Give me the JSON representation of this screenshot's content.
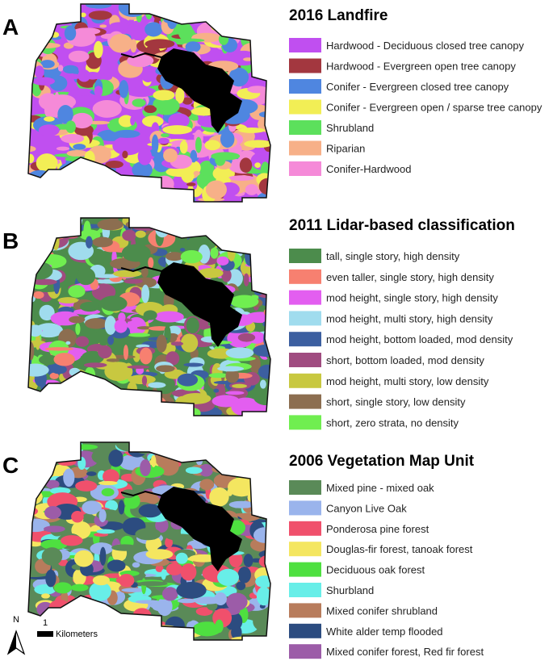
{
  "panels": [
    {
      "label": "A",
      "legend": {
        "title": "2016 Landfire",
        "items": [
          {
            "label": "Hardwood - Deciduous closed tree canopy",
            "color": "#c04ff0"
          },
          {
            "label": "Hardwood - Evergreen open tree canopy",
            "color": "#a3373f"
          },
          {
            "label": "Conifer - Evergreen closed tree canopy",
            "color": "#4f86e0"
          },
          {
            "label": "Conifer - Evergreen open / sparse tree canopy",
            "color": "#f2ee55"
          },
          {
            "label": "Shrubland",
            "color": "#5ce05c"
          },
          {
            "label": "Riparian",
            "color": "#f7b088"
          },
          {
            "label": "Conifer-Hardwood",
            "color": "#f58ad8"
          }
        ]
      }
    },
    {
      "label": "B",
      "legend": {
        "title": "2011 Lidar-based classification",
        "items": [
          {
            "label": "tall, single story, high density",
            "color": "#4c8c4c"
          },
          {
            "label": "even taller, single story, high density",
            "color": "#f78070"
          },
          {
            "label": "mod height, single story, high density",
            "color": "#e35ef0"
          },
          {
            "label": "mod height, multi story, high density",
            "color": "#a0dcee"
          },
          {
            "label": "mod height, bottom loaded, mod density",
            "color": "#3c5fa0"
          },
          {
            "label": "short, bottom loaded, mod density",
            "color": "#a04c80"
          },
          {
            "label": "mod height, multi story, low density",
            "color": "#c8c840"
          },
          {
            "label": "short, single story, low density",
            "color": "#8c6e50"
          },
          {
            "label": "short, zero strata, no density",
            "color": "#70ee50"
          }
        ]
      }
    },
    {
      "label": "C",
      "legend": {
        "title": "2006 Vegetation Map Unit",
        "items": [
          {
            "label": "Mixed pine - mixed oak",
            "color": "#5a8a58"
          },
          {
            "label": "Canyon Live Oak",
            "color": "#9ab4ec"
          },
          {
            "label": "Ponderosa pine forest",
            "color": "#f0506c"
          },
          {
            "label": "Douglas-fir forest, tanoak forest",
            "color": "#f4e660"
          },
          {
            "label": "Deciduous oak forest",
            "color": "#4ee040"
          },
          {
            "label": "Shurbland",
            "color": "#68eee8"
          },
          {
            "label": "Mixed conifer shrubland",
            "color": "#b87c5c"
          },
          {
            "label": "White alder temp flooded",
            "color": "#2c4c80"
          },
          {
            "label": "Mixed conifer forest, Red fir forest",
            "color": "#9c5ca8"
          }
        ]
      }
    }
  ],
  "north": "N",
  "scale_bar": {
    "value": 1,
    "unit": "Kilometers"
  }
}
